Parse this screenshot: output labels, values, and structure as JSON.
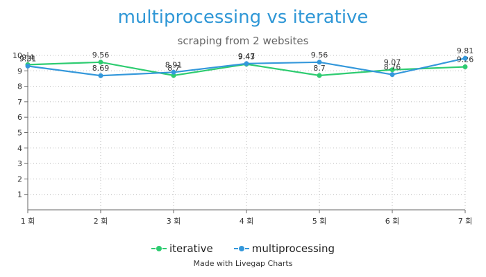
{
  "chart_data": {
    "type": "line",
    "title": "multiprocessing vs iterative",
    "subtitle": "scraping from 2 websites",
    "categories": [
      "1 회",
      "2 회",
      "3 회",
      "4 회",
      "5 회",
      "6 회",
      "7 회"
    ],
    "y_ticks": [
      "1",
      "2",
      "3",
      "4",
      "5",
      "6",
      "7",
      "8",
      "9",
      "10"
    ],
    "ylim": [
      0,
      10
    ],
    "grid": true,
    "legend_position": "bottom",
    "series": [
      {
        "name": "iterative",
        "color": "#2ecc71",
        "values": [
          9.4,
          9.56,
          8.7,
          9.43,
          8.7,
          9.07,
          9.26
        ],
        "data_labels": [
          "9.4",
          "9.56",
          "8.7",
          "9.43",
          "8.7",
          "9.07",
          "9.26"
        ]
      },
      {
        "name": "multiprocessing",
        "color": "#3498db",
        "values": [
          9.31,
          8.69,
          8.91,
          9.47,
          9.56,
          8.76,
          9.81
        ],
        "data_labels": [
          "9.31",
          "8.69",
          "8.91",
          "9.47",
          "9.56",
          "8.76",
          "9.81"
        ]
      }
    ]
  },
  "footer": {
    "credit": "Made with Livegap Charts"
  }
}
